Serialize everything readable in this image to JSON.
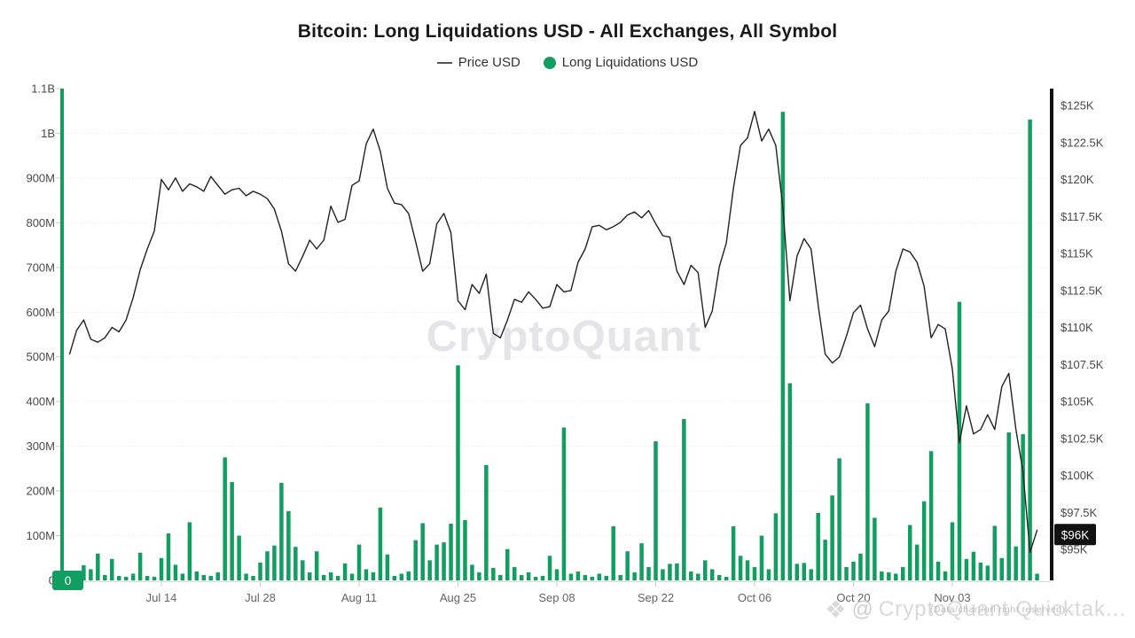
{
  "header": {
    "title": "Bitcoin: Long Liquidations USD - All Exchanges, All Symbol",
    "legend": [
      {
        "label": "Price USD",
        "marker": "line",
        "color": "#555555"
      },
      {
        "label": "Long Liquidations USD",
        "marker": "dot",
        "color": "#129e60"
      }
    ]
  },
  "watermarks": {
    "center": "CryptoQuant",
    "bottom_right_logo": "❖",
    "bottom_right_at": "@",
    "bottom_right_text": "CryptoQuant Quicktak...",
    "bottom_right_overlay": "(Data/chart/url right reserved)..."
  },
  "chart_data": {
    "type": "bar+line",
    "title": "Bitcoin: Long Liquidations USD - All Exchanges, All Symbol",
    "x": [
      "Jul 1",
      "Jul 2",
      "Jul 3",
      "Jul 4",
      "Jul 5",
      "Jul 6",
      "Jul 7",
      "Jul 8",
      "Jul 9",
      "Jul 10",
      "Jul 11",
      "Jul 12",
      "Jul 13",
      "Jul 14",
      "Jul 15",
      "Jul 16",
      "Jul 17",
      "Jul 18",
      "Jul 19",
      "Jul 20",
      "Jul 21",
      "Jul 22",
      "Jul 23",
      "Jul 24",
      "Jul 25",
      "Jul 26",
      "Jul 27",
      "Jul 28",
      "Jul 29",
      "Jul 30",
      "Jul 31",
      "Aug 1",
      "Aug 2",
      "Aug 3",
      "Aug 4",
      "Aug 5",
      "Aug 6",
      "Aug 7",
      "Aug 8",
      "Aug 9",
      "Aug 10",
      "Aug 11",
      "Aug 12",
      "Aug 13",
      "Aug 14",
      "Aug 15",
      "Aug 16",
      "Aug 17",
      "Aug 18",
      "Aug 19",
      "Aug 20",
      "Aug 21",
      "Aug 22",
      "Aug 23",
      "Aug 24",
      "Aug 25",
      "Aug 26",
      "Aug 27",
      "Aug 28",
      "Aug 29",
      "Aug 30",
      "Aug 31",
      "Sep 1",
      "Sep 2",
      "Sep 3",
      "Sep 4",
      "Sep 5",
      "Sep 6",
      "Sep 7",
      "Sep 8",
      "Sep 9",
      "Sep 10",
      "Sep 11",
      "Sep 12",
      "Sep 13",
      "Sep 14",
      "Sep 15",
      "Sep 16",
      "Sep 17",
      "Sep 18",
      "Sep 19",
      "Sep 20",
      "Sep 21",
      "Sep 22",
      "Sep 23",
      "Sep 24",
      "Sep 25",
      "Sep 26",
      "Sep 27",
      "Sep 28",
      "Sep 29",
      "Sep 30",
      "Oct 1",
      "Oct 2",
      "Oct 3",
      "Oct 4",
      "Oct 5",
      "Oct 6",
      "Oct 7",
      "Oct 8",
      "Oct 9",
      "Oct 10",
      "Oct 11",
      "Oct 12",
      "Oct 13",
      "Oct 14",
      "Oct 15",
      "Oct 16",
      "Oct 17",
      "Oct 18",
      "Oct 19",
      "Oct 20",
      "Oct 21",
      "Oct 22",
      "Oct 23",
      "Oct 24",
      "Oct 25",
      "Oct 26",
      "Oct 27",
      "Oct 28",
      "Oct 29",
      "Oct 30",
      "Oct 31",
      "Nov 1",
      "Nov 2",
      "Nov 3",
      "Nov 4",
      "Nov 5",
      "Nov 6",
      "Nov 7",
      "Nov 8",
      "Nov 9",
      "Nov 10",
      "Nov 11",
      "Nov 12",
      "Nov 13",
      "Nov 14",
      "Nov 15"
    ],
    "series": [
      {
        "name": "Price USD",
        "type": "line",
        "axis": "right",
        "unit": "thousand USD",
        "color": "#222222",
        "values": [
          108.2,
          109.8,
          110.5,
          109.2,
          109.0,
          109.3,
          110.0,
          109.7,
          110.5,
          112.0,
          113.9,
          115.3,
          116.5,
          120.0,
          119.3,
          120.1,
          119.2,
          119.7,
          119.5,
          119.2,
          120.2,
          119.6,
          119.0,
          119.3,
          119.4,
          118.9,
          119.2,
          119.0,
          118.7,
          118.0,
          116.5,
          114.3,
          113.8,
          114.8,
          115.9,
          115.3,
          115.9,
          118.2,
          117.1,
          117.3,
          119.6,
          119.9,
          122.4,
          123.4,
          121.9,
          119.4,
          118.4,
          118.3,
          117.7,
          115.8,
          113.8,
          114.3,
          117.0,
          117.7,
          116.4,
          111.8,
          111.2,
          112.9,
          112.3,
          113.6,
          109.6,
          109.3,
          110.5,
          111.9,
          111.7,
          112.4,
          111.9,
          111.3,
          111.4,
          112.9,
          112.4,
          112.5,
          114.4,
          115.3,
          116.8,
          116.9,
          116.6,
          116.8,
          117.1,
          117.6,
          117.8,
          117.4,
          117.9,
          117.0,
          116.2,
          116.1,
          113.8,
          112.9,
          114.2,
          113.7,
          110.0,
          111.1,
          114.1,
          115.7,
          119.4,
          122.3,
          122.8,
          124.6,
          122.6,
          123.4,
          122.3,
          118.1,
          111.8,
          114.8,
          116.0,
          115.3,
          111.5,
          108.2,
          107.6,
          108.0,
          109.4,
          111.0,
          111.5,
          109.9,
          108.7,
          110.5,
          111.1,
          113.8,
          115.3,
          115.1,
          114.4,
          112.8,
          109.3,
          110.2,
          109.9,
          107.2,
          102.2,
          104.7,
          102.8,
          103.1,
          104.1,
          103.1,
          106.0,
          106.9,
          103.1,
          100.3,
          94.8,
          96.3
        ]
      },
      {
        "name": "Long Liquidations USD",
        "type": "bar",
        "axis": "left",
        "unit": "million USD",
        "color": "#129e60",
        "values": [
          15,
          20,
          34,
          25,
          60,
          12,
          48,
          10,
          8,
          15,
          62,
          10,
          8,
          50,
          105,
          35,
          15,
          130,
          20,
          12,
          10,
          18,
          275,
          220,
          100,
          15,
          10,
          40,
          65,
          78,
          218,
          155,
          75,
          45,
          18,
          65,
          12,
          18,
          10,
          38,
          15,
          80,
          25,
          18,
          163,
          58,
          10,
          15,
          20,
          90,
          128,
          45,
          80,
          85,
          127,
          481,
          135,
          35,
          18,
          258,
          28,
          12,
          70,
          30,
          12,
          18,
          8,
          10,
          55,
          25,
          342,
          15,
          20,
          12,
          8,
          15,
          10,
          121,
          12,
          65,
          18,
          83,
          30,
          311,
          25,
          37,
          38,
          361,
          20,
          15,
          45,
          25,
          12,
          8,
          121,
          55,
          45,
          30,
          100,
          25,
          150,
          1048,
          441,
          37,
          39,
          25,
          151,
          91,
          190,
          273,
          30,
          42,
          60,
          396,
          140,
          20,
          18,
          15,
          30,
          124,
          80,
          177,
          289,
          42,
          20,
          130,
          623,
          48,
          64,
          40,
          33,
          122,
          50,
          331,
          76,
          327,
          1031,
          15
        ]
      }
    ],
    "left_axis": {
      "title": "",
      "unit": "USD",
      "min": 0,
      "max": 1100000000,
      "labels": [
        "1.1B",
        "1B",
        "900M",
        "800M",
        "700M",
        "600M",
        "500M",
        "400M",
        "300M",
        "200M",
        "100M",
        "0"
      ],
      "badge": {
        "text": "0",
        "bg": "#129e60",
        "fg": "#ffffff"
      }
    },
    "right_axis": {
      "title": "",
      "unit": "USD",
      "min": 95000,
      "max": 125000,
      "labels": [
        "$125K",
        "$122.5K",
        "$120K",
        "$117.5K",
        "$115K",
        "$112.5K",
        "$110K",
        "$107.5K",
        "$105K",
        "$102.5K",
        "$100K",
        "$97.5K",
        "$95K"
      ],
      "badge": {
        "text": "$96K",
        "bg": "#111111",
        "fg": "#ffffff"
      }
    },
    "x_axis": {
      "ticks": [
        {
          "label": "Jul 14",
          "index": 13
        },
        {
          "label": "Jul 28",
          "index": 27
        },
        {
          "label": "Aug 11",
          "index": 41
        },
        {
          "label": "Aug 25",
          "index": 55
        },
        {
          "label": "Sep 08",
          "index": 69
        },
        {
          "label": "Sep 22",
          "index": 83
        },
        {
          "label": "Oct 06",
          "index": 97
        },
        {
          "label": "Oct 20",
          "index": 111
        },
        {
          "label": "Nov 03",
          "index": 125
        }
      ]
    },
    "legend_position": "top",
    "grid": true
  }
}
